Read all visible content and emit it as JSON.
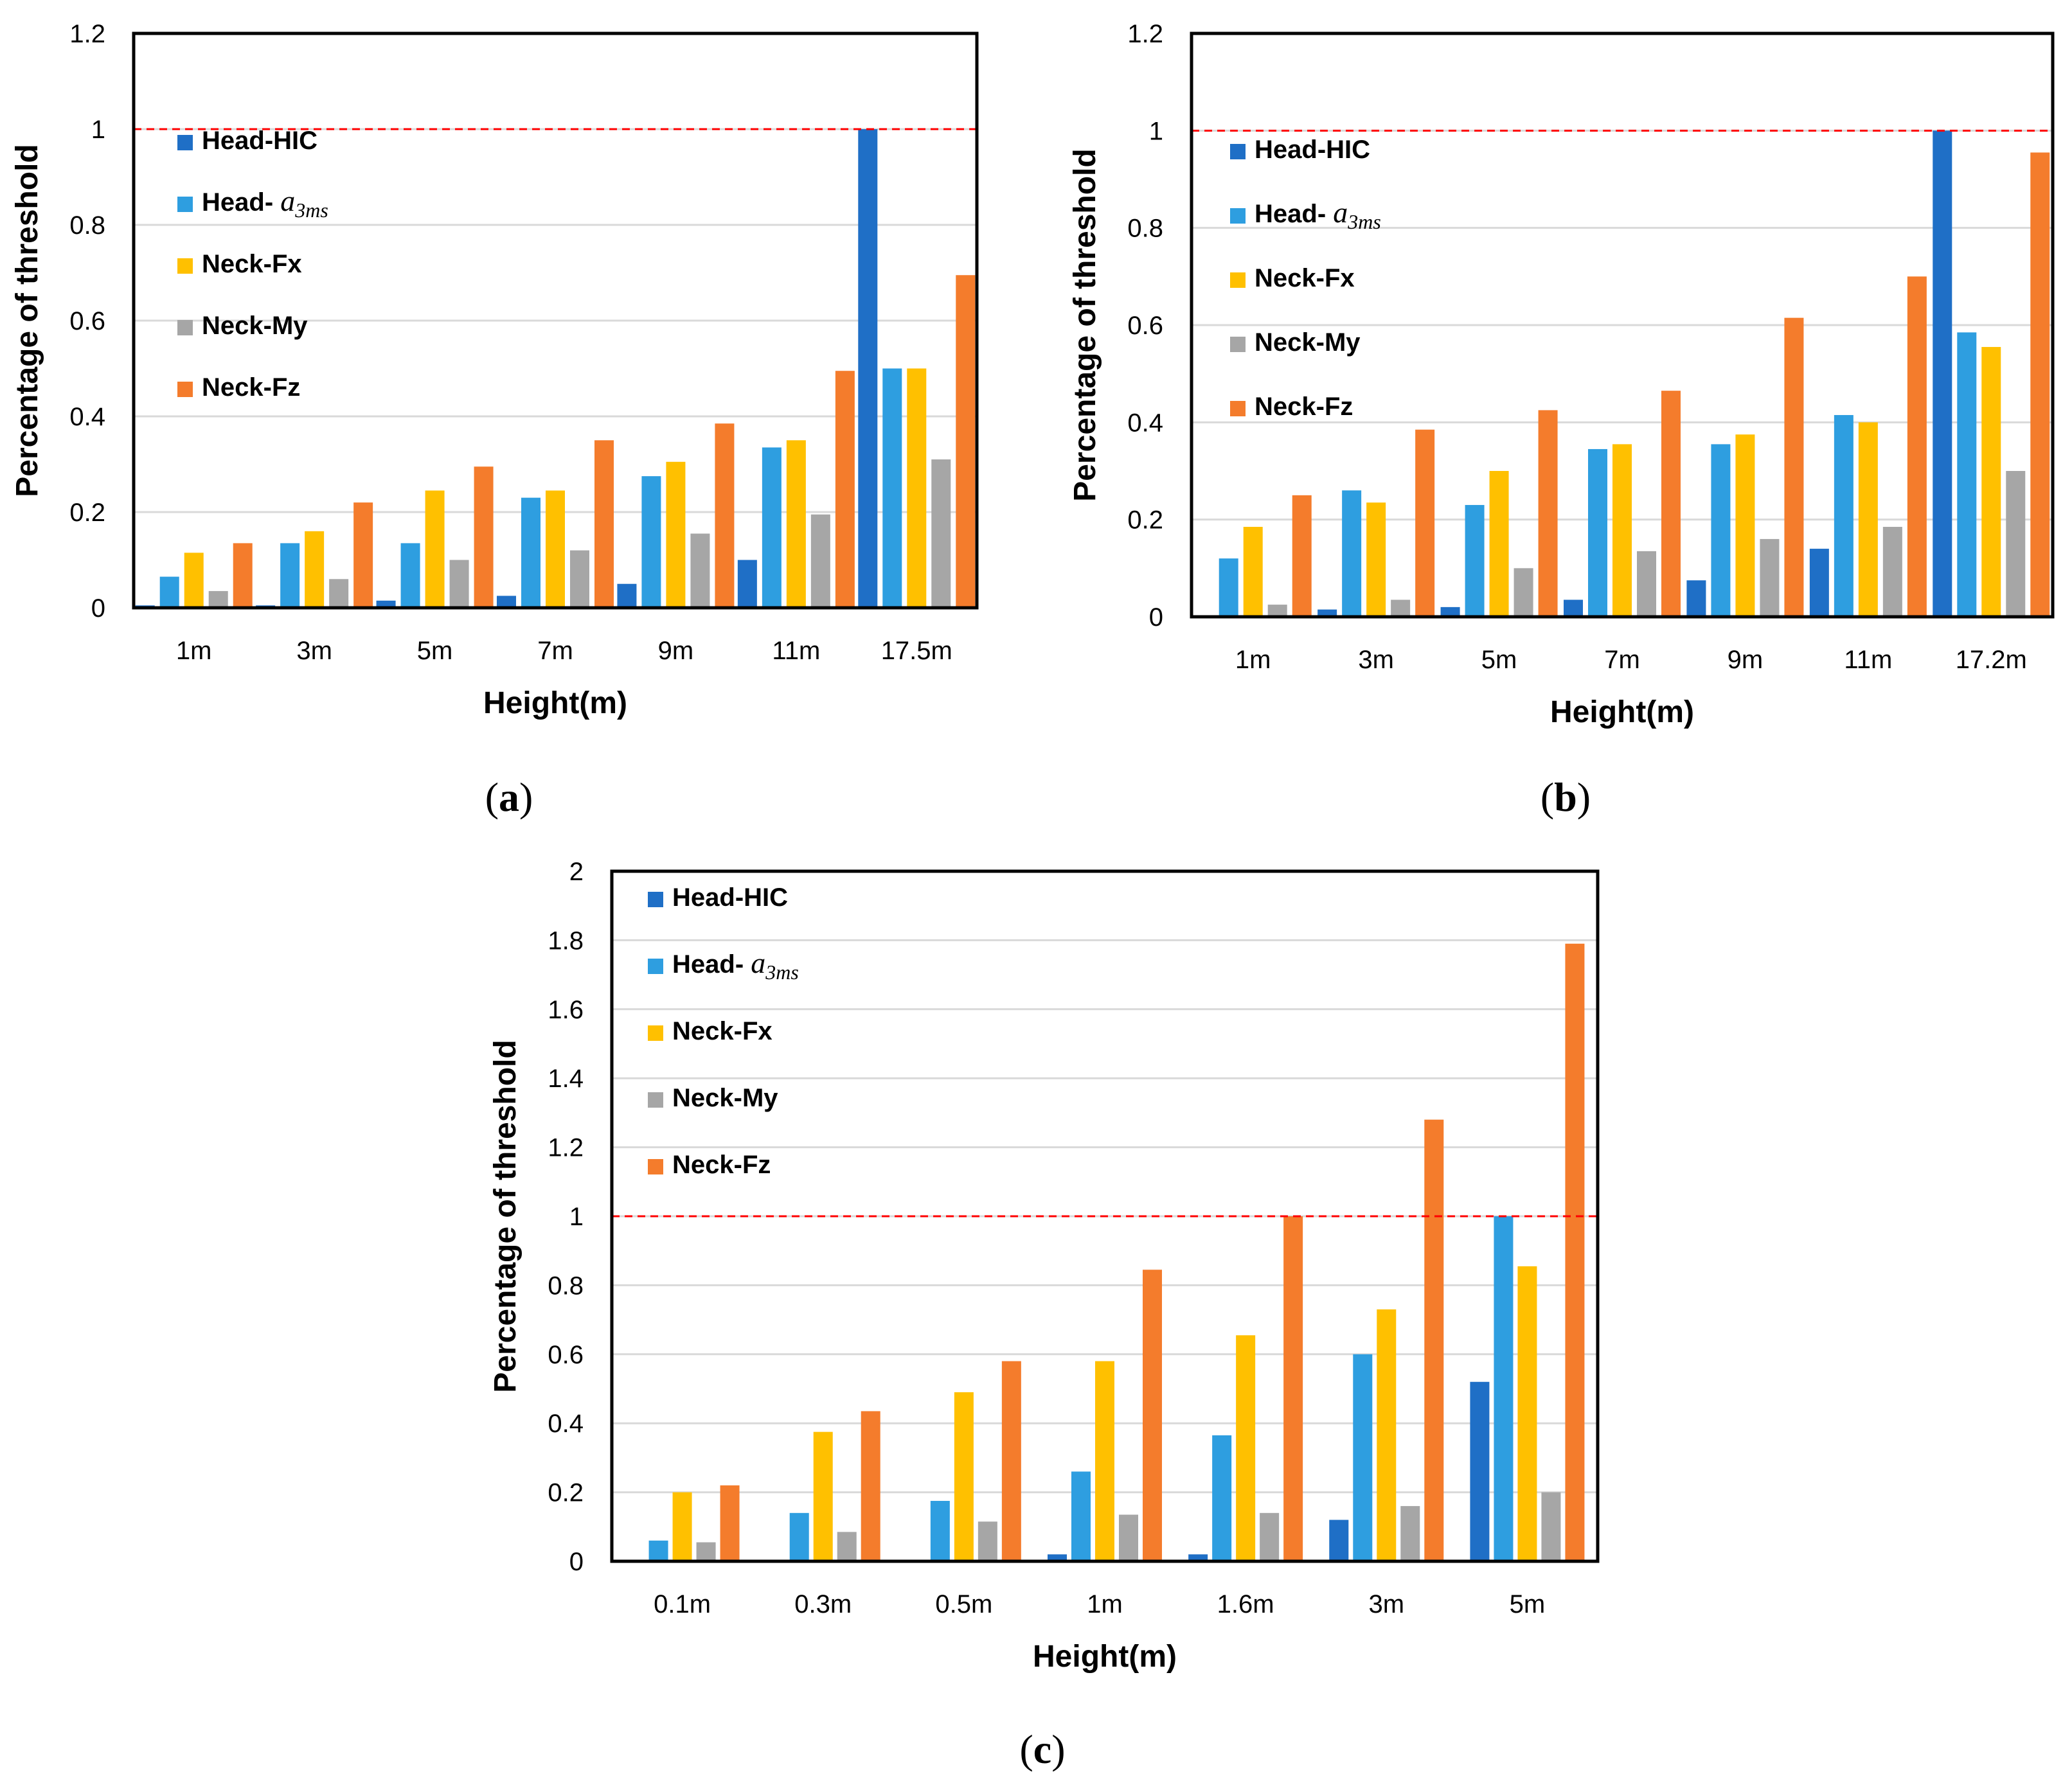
{
  "series_colors": {
    "Head-HIC": "#1f6fc6",
    "Head-a3ms": "#2e9ee0",
    "Neck-Fx": "#ffc000",
    "Neck-My": "#a6a6a6",
    "Neck-Fz": "#f47c2c"
  },
  "legend": [
    {
      "label": "Head-HIC",
      "key": "Head-HIC"
    },
    {
      "label": "Head- ",
      "math": "a",
      "sub": "3ms",
      "key": "Head-a3ms"
    },
    {
      "label": "Neck-Fx",
      "key": "Neck-Fx"
    },
    {
      "label": "Neck-My",
      "key": "Neck-My"
    },
    {
      "label": "Neck-Fz",
      "key": "Neck-Fz"
    }
  ],
  "threshold_color": "#ff0000",
  "chart_data": [
    {
      "panel": "(a)",
      "type": "bar",
      "ylabel": "Percentage of threshold",
      "xlabel": "Height(m)",
      "ylim": [
        0,
        1.2
      ],
      "yticks": [
        "0",
        "0.2",
        "0.4",
        "0.6",
        "0.8",
        "1",
        "1.2"
      ],
      "threshold": 1,
      "categories": [
        "1m",
        "3m",
        "5m",
        "7m",
        "9m",
        "11m",
        "17.5m"
      ],
      "series": [
        {
          "name": "Head-HIC",
          "values": [
            0.005,
            0.005,
            0.015,
            0.025,
            0.05,
            0.1,
            1.0
          ]
        },
        {
          "name": "Head-a3ms",
          "values": [
            0.065,
            0.135,
            0.135,
            0.23,
            0.275,
            0.335,
            0.5
          ]
        },
        {
          "name": "Neck-Fx",
          "values": [
            0.115,
            0.16,
            0.245,
            0.245,
            0.305,
            0.35,
            0.5
          ]
        },
        {
          "name": "Neck-My",
          "values": [
            0.035,
            0.06,
            0.1,
            0.12,
            0.155,
            0.195,
            0.31
          ]
        },
        {
          "name": "Neck-Fz",
          "values": [
            0.135,
            0.22,
            0.295,
            0.35,
            0.385,
            0.495,
            0.695
          ]
        }
      ]
    },
    {
      "panel": "(b)",
      "type": "bar",
      "ylabel": "Percentage of threshold",
      "xlabel": "Height(m)",
      "ylim": [
        0,
        1.2
      ],
      "yticks": [
        "0",
        "0.2",
        "0.4",
        "0.6",
        "0.8",
        "1",
        "1.2"
      ],
      "threshold": 1,
      "categories": [
        "1m",
        "3m",
        "5m",
        "7m",
        "9m",
        "11m",
        "17.2m"
      ],
      "series": [
        {
          "name": "Head-HIC",
          "values": [
            0.0,
            0.015,
            0.02,
            0.035,
            0.075,
            0.14,
            1.0
          ]
        },
        {
          "name": "Head-a3ms",
          "values": [
            0.12,
            0.26,
            0.23,
            0.345,
            0.355,
            0.415,
            0.585
          ]
        },
        {
          "name": "Neck-Fx",
          "values": [
            0.185,
            0.235,
            0.3,
            0.355,
            0.375,
            0.4,
            0.555
          ]
        },
        {
          "name": "Neck-My",
          "values": [
            0.025,
            0.035,
            0.1,
            0.135,
            0.16,
            0.185,
            0.3
          ]
        },
        {
          "name": "Neck-Fz",
          "values": [
            0.25,
            0.385,
            0.425,
            0.465,
            0.615,
            0.7,
            0.955
          ]
        }
      ]
    },
    {
      "panel": "(c)",
      "type": "bar",
      "ylabel": "Percentage of threshold",
      "xlabel": "Height(m)",
      "ylim": [
        0,
        2
      ],
      "yticks": [
        "0",
        "0.2",
        "0.4",
        "0.6",
        "0.8",
        "1",
        "1.2",
        "1.4",
        "1.6",
        "1.8",
        "2"
      ],
      "threshold": 1,
      "categories": [
        "0.1m",
        "0.3m",
        "0.5m",
        "1m",
        "1.6m",
        "3m",
        "5m"
      ],
      "series": [
        {
          "name": "Head-HIC",
          "values": [
            0.0,
            0.0,
            0.0,
            0.02,
            0.02,
            0.12,
            0.52
          ]
        },
        {
          "name": "Head-a3ms",
          "values": [
            0.06,
            0.14,
            0.175,
            0.26,
            0.365,
            0.6,
            1.0
          ]
        },
        {
          "name": "Neck-Fx",
          "values": [
            0.2,
            0.375,
            0.49,
            0.58,
            0.655,
            0.73,
            0.855
          ]
        },
        {
          "name": "Neck-My",
          "values": [
            0.055,
            0.085,
            0.115,
            0.135,
            0.14,
            0.16,
            0.2
          ]
        },
        {
          "name": "Neck-Fz",
          "values": [
            0.22,
            0.435,
            0.58,
            0.845,
            1.0,
            1.28,
            1.79
          ]
        }
      ]
    }
  ]
}
